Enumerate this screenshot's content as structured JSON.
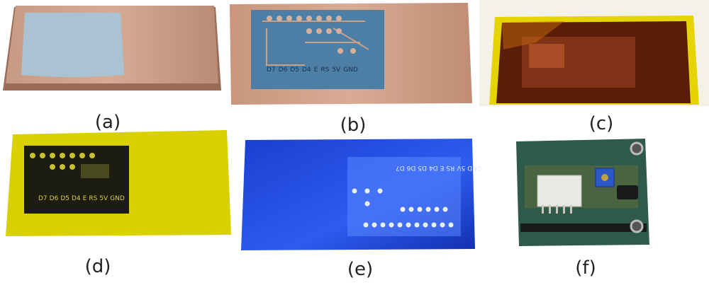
{
  "figure": {
    "panels": [
      {
        "id": "a",
        "label": "(a)"
      },
      {
        "id": "b",
        "label": "(b)",
        "board_labels": [
          "D7",
          "D6",
          "D5",
          "D4",
          "E",
          "RS",
          "5V",
          "GND"
        ]
      },
      {
        "id": "c",
        "label": "(c)"
      },
      {
        "id": "d",
        "label": "(d)",
        "board_labels": [
          "D7",
          "D6",
          "D5",
          "D4",
          "E",
          "RS",
          "5V",
          "GND"
        ]
      },
      {
        "id": "e",
        "label": "(e)",
        "board_labels": [
          "GND",
          "5V",
          "RS",
          "E",
          "D4",
          "D5",
          "D6",
          "D7"
        ]
      },
      {
        "id": "f",
        "label": "(f)"
      }
    ]
  }
}
